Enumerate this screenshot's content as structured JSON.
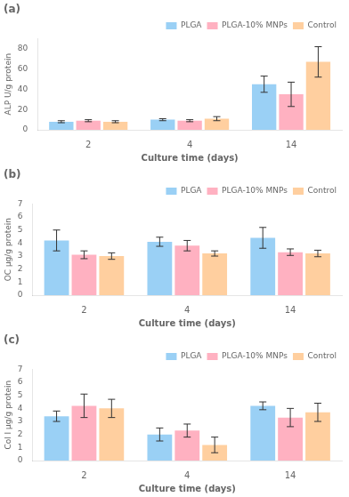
{
  "chart_data": [
    {
      "type": "bar",
      "title": "(a)",
      "xlabel": "Culture time (days)",
      "ylabel": "ALP U/g protein",
      "categories": [
        "2",
        "4",
        "14"
      ],
      "series": [
        {
          "name": "PLGA",
          "values": [
            8,
            10,
            45
          ],
          "errors": [
            1.0,
            1.0,
            8.0
          ]
        },
        {
          "name": "PLGA-10% MNPs",
          "values": [
            9,
            9,
            35
          ],
          "errors": [
            1.0,
            1.0,
            12.0
          ]
        },
        {
          "name": "Control",
          "values": [
            8,
            11,
            67
          ],
          "errors": [
            1.0,
            2.0,
            15.0
          ]
        }
      ],
      "ylim": [
        0,
        90
      ],
      "yticks": [
        0,
        20,
        40,
        60,
        80
      ],
      "grid": false,
      "legend": "upper right"
    },
    {
      "type": "bar",
      "title": "(b)",
      "xlabel": "Culture time (days)",
      "ylabel": "OC μg/g protein",
      "categories": [
        "2",
        "4",
        "14"
      ],
      "series": [
        {
          "name": "PLGA",
          "values": [
            4.2,
            4.1,
            4.4
          ],
          "errors": [
            0.8,
            0.35,
            0.8
          ]
        },
        {
          "name": "PLGA-10% MNPs",
          "values": [
            3.1,
            3.8,
            3.3
          ],
          "errors": [
            0.3,
            0.4,
            0.25
          ]
        },
        {
          "name": "Control",
          "values": [
            3.0,
            3.2,
            3.2
          ],
          "errors": [
            0.25,
            0.2,
            0.25
          ]
        }
      ],
      "ylim": [
        0,
        7
      ],
      "yticks": [
        0,
        1,
        2,
        3,
        4,
        5,
        6,
        7
      ],
      "grid": false,
      "legend": "upper right"
    },
    {
      "type": "bar",
      "title": "(c)",
      "xlabel": "Culture time (days)",
      "ylabel": "Col I μg/g protein",
      "categories": [
        "2",
        "4",
        "14"
      ],
      "series": [
        {
          "name": "PLGA",
          "values": [
            3.4,
            2.0,
            4.2
          ],
          "errors": [
            0.4,
            0.5,
            0.3
          ]
        },
        {
          "name": "PLGA-10% MNPs",
          "values": [
            4.2,
            2.3,
            3.3
          ],
          "errors": [
            0.9,
            0.5,
            0.7
          ]
        },
        {
          "name": "Control",
          "values": [
            4.0,
            1.2,
            3.7
          ],
          "errors": [
            0.7,
            0.6,
            0.7
          ]
        }
      ],
      "ylim": [
        0,
        7
      ],
      "yticks": [
        0,
        1,
        2,
        3,
        4,
        5,
        6,
        7
      ],
      "grid": false,
      "legend": "upper right"
    }
  ]
}
